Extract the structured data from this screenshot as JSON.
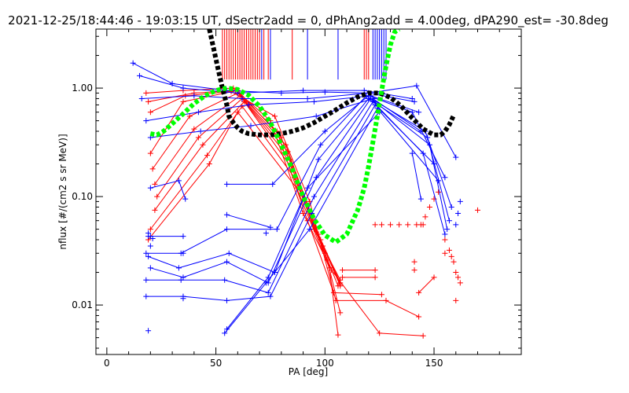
{
  "chart_data": {
    "type": "scatter",
    "title": "2021-12-25/18:44:46 - 19:03:15 UT, dSectr2add = 0, dPhAng2add = 4.00deg, dPA290_est= -30.8deg",
    "xlabel": "PA [deg]",
    "ylabel": "nflux [#/(cm2 s sr MeV)]",
    "xlim": [
      -5,
      190
    ],
    "ylim": [
      0.0035,
      3.5
    ],
    "yscale": "log",
    "xticks": [
      0,
      50,
      100,
      150
    ],
    "xtick_labels": [
      "0",
      "50",
      "100",
      "150"
    ],
    "yticks": [
      0.01,
      0.1,
      1.0
    ],
    "ytick_labels": [
      "0.01",
      "0.10",
      "1.00"
    ],
    "grid": false,
    "colors": {
      "blue": "#0000ff",
      "red": "#ff0000",
      "green": "#00ff00",
      "black": "#000000"
    },
    "vertical_ticks": {
      "red": [
        53,
        54,
        55,
        56,
        57,
        58,
        59,
        60,
        61,
        62,
        63,
        64,
        65,
        66,
        67,
        68,
        69,
        70,
        72,
        74,
        85,
        118,
        119,
        120
      ],
      "blue": [
        71,
        75,
        92,
        106,
        122,
        123,
        124,
        125,
        126,
        127,
        128
      ],
      "top": 3.5,
      "bottom": 1.2
    },
    "series": [
      {
        "color": "black",
        "style": "thick-dashed",
        "x": [
          47,
          49,
          51,
          53,
          55,
          56,
          58,
          60,
          62,
          65,
          70,
          75,
          80,
          85,
          90,
          95,
          100,
          105,
          110,
          115,
          120,
          125,
          130,
          135,
          140,
          145,
          150,
          153,
          155,
          157,
          159
        ],
        "y": [
          3.5,
          2.3,
          1.5,
          1.0,
          0.7,
          0.55,
          0.48,
          0.43,
          0.4,
          0.38,
          0.37,
          0.37,
          0.38,
          0.4,
          0.43,
          0.48,
          0.55,
          0.63,
          0.73,
          0.83,
          0.9,
          0.9,
          0.82,
          0.68,
          0.53,
          0.42,
          0.37,
          0.37,
          0.4,
          0.46,
          0.56
        ]
      },
      {
        "color": "green",
        "style": "thick-dashed",
        "x": [
          20,
          23,
          26,
          30,
          35,
          40,
          45,
          50,
          55,
          60,
          65,
          70,
          75,
          80,
          85,
          90,
          95,
          100,
          105,
          110,
          115,
          118,
          120,
          122,
          124,
          126,
          128,
          130,
          132,
          134
        ],
        "y": [
          0.38,
          0.37,
          0.4,
          0.47,
          0.58,
          0.72,
          0.85,
          0.95,
          1.0,
          0.97,
          0.86,
          0.68,
          0.48,
          0.3,
          0.18,
          0.1,
          0.062,
          0.044,
          0.038,
          0.045,
          0.075,
          0.12,
          0.19,
          0.32,
          0.55,
          0.95,
          1.6,
          2.5,
          3.3,
          3.5
        ]
      },
      {
        "color": "red",
        "lines": [
          {
            "x": [
              20,
              35,
              60,
              80,
              95,
              107
            ],
            "y": [
              0.25,
              0.75,
              0.95,
              0.35,
              0.05,
              0.017
            ]
          },
          {
            "x": [
              21,
              38,
              60,
              82,
              97,
              107
            ],
            "y": [
              0.18,
              0.55,
              0.9,
              0.3,
              0.045,
              0.016
            ]
          },
          {
            "x": [
              22,
              40,
              61,
              83,
              98,
              107
            ],
            "y": [
              0.13,
              0.42,
              0.85,
              0.26,
              0.04,
              0.015
            ]
          },
          {
            "x": [
              23,
              42,
              62,
              84,
              99,
              107
            ],
            "y": [
              0.1,
              0.35,
              0.8,
              0.22,
              0.035,
              0.0155
            ]
          },
          {
            "x": [
              22,
              44,
              63,
              85,
              100,
              106
            ],
            "y": [
              0.075,
              0.3,
              0.75,
              0.18,
              0.03,
              0.015
            ]
          },
          {
            "x": [
              20,
              46,
              62,
              86,
              101,
              107
            ],
            "y": [
              0.05,
              0.24,
              0.68,
              0.15,
              0.026,
              0.0085
            ]
          },
          {
            "x": [
              19,
              47,
              60,
              87,
              102,
              106
            ],
            "y": [
              0.04,
              0.2,
              0.6,
              0.12,
              0.022,
              0.0053
            ]
          },
          {
            "x": [
              18,
              35,
              58,
              75,
              90,
              103,
              125,
              145
            ],
            "y": [
              0.9,
              0.95,
              1.0,
              0.5,
              0.07,
              0.021,
              0.0055,
              0.0052
            ]
          },
          {
            "x": [
              19,
              40,
              59,
              78,
              92,
              104,
              126
            ],
            "y": [
              0.75,
              0.9,
              0.95,
              0.4,
              0.06,
              0.013,
              0.0125
            ]
          },
          {
            "x": [
              20,
              36,
              57,
              77,
              93,
              105,
              128,
              143
            ],
            "y": [
              0.6,
              0.85,
              0.93,
              0.55,
              0.09,
              0.011,
              0.011,
              0.0078
            ]
          },
          {
            "x": [
              108,
              123
            ],
            "y": [
              0.021,
              0.021
            ]
          },
          {
            "x": [
              108,
              123
            ],
            "y": [
              0.018,
              0.018
            ]
          },
          {
            "x": [
              143,
              150
            ],
            "y": [
              0.013,
              0.018
            ]
          }
        ],
        "points": {
          "x": [
            123,
            126,
            130,
            134,
            138,
            142,
            144,
            146,
            148,
            150,
            152,
            155,
            157,
            158,
            159,
            160,
            161,
            162,
            155,
            160,
            170,
            145,
            141,
            141
          ],
          "y": [
            0.055,
            0.055,
            0.055,
            0.055,
            0.055,
            0.055,
            0.055,
            0.065,
            0.08,
            0.095,
            0.11,
            0.04,
            0.032,
            0.028,
            0.025,
            0.02,
            0.018,
            0.016,
            0.03,
            0.011,
            0.075,
            0.055,
            0.025,
            0.021
          ]
        }
      },
      {
        "color": "blue",
        "lines": [
          {
            "x": [
              12,
              30,
              55,
              80,
              100,
              120,
              142,
              160
            ],
            "y": [
              1.7,
              1.1,
              0.95,
              0.9,
              0.92,
              0.9,
              1.05,
              0.23
            ]
          },
          {
            "x": [
              15,
              35,
              60,
              90,
              118,
              140
            ],
            "y": [
              1.3,
              1.0,
              0.9,
              0.95,
              0.95,
              0.8
            ]
          },
          {
            "x": [
              16,
              40,
              62,
              92,
              120,
              141
            ],
            "y": [
              0.8,
              0.85,
              0.8,
              0.8,
              0.9,
              0.75
            ]
          },
          {
            "x": [
              18,
              42,
              65,
              95,
              121,
              143
            ],
            "y": [
              0.5,
              0.6,
              0.7,
              0.75,
              0.85,
              0.6
            ]
          },
          {
            "x": [
              20,
              43,
              66,
              96,
              122,
              144
            ],
            "y": [
              0.35,
              0.4,
              0.45,
              0.55,
              0.8,
              0.4
            ]
          },
          {
            "x": [
              55,
              76,
              100,
              120,
              140,
              155
            ],
            "y": [
              0.13,
              0.13,
              0.4,
              0.85,
              0.6,
              0.15
            ]
          },
          {
            "x": [
              18,
              34,
              55,
              78,
              98,
              119,
              146,
              158
            ],
            "y": [
              0.03,
              0.03,
              0.05,
              0.05,
              0.3,
              0.85,
              0.4,
              0.08
            ]
          },
          {
            "x": [
              19,
              33,
              56,
              77,
              97,
              120,
              147,
              157
            ],
            "y": [
              0.028,
              0.022,
              0.03,
              0.02,
              0.22,
              0.8,
              0.35,
              0.06
            ]
          },
          {
            "x": [
              20,
              35,
              55,
              74,
              96,
              121,
              148,
              156
            ],
            "y": [
              0.022,
              0.018,
              0.025,
              0.016,
              0.15,
              0.8,
              0.3,
              0.05
            ]
          },
          {
            "x": [
              18,
              34,
              54,
              74,
              95,
              122,
              145,
              155
            ],
            "y": [
              0.017,
              0.017,
              0.017,
              0.013,
              0.1,
              0.75,
              0.25,
              0.045
            ]
          },
          {
            "x": [
              18,
              35,
              55,
              75,
              94,
              123,
              150
            ],
            "y": [
              0.012,
              0.012,
              0.011,
              0.012,
              0.07,
              0.7,
              0.2
            ]
          },
          {
            "x": [
              54,
              73,
              93,
              124,
              152
            ],
            "y": [
              0.0055,
              0.016,
              0.05,
              0.65,
              0.14
            ]
          },
          {
            "x": [
              55,
              74,
              92,
              125
            ],
            "y": [
              0.006,
              0.018,
              0.12,
              0.6
            ]
          },
          {
            "x": [
              19,
              35
            ],
            "y": [
              0.043,
              0.043
            ]
          },
          {
            "x": [
              55,
              75
            ],
            "y": [
              0.068,
              0.052
            ]
          },
          {
            "x": [
              20,
              33,
              36
            ],
            "y": [
              0.12,
              0.14,
              0.095
            ]
          },
          {
            "x": [
              140,
              144
            ],
            "y": [
              0.25,
              0.095
            ]
          }
        ],
        "points": {
          "x": [
            19,
            19,
            20,
            20,
            21,
            35,
            35,
            73,
            160,
            161,
            162
          ],
          "y": [
            0.0058,
            0.046,
            0.043,
            0.035,
            0.041,
            0.03,
            0.0115,
            0.046,
            0.055,
            0.07,
            0.09
          ]
        }
      }
    ]
  }
}
